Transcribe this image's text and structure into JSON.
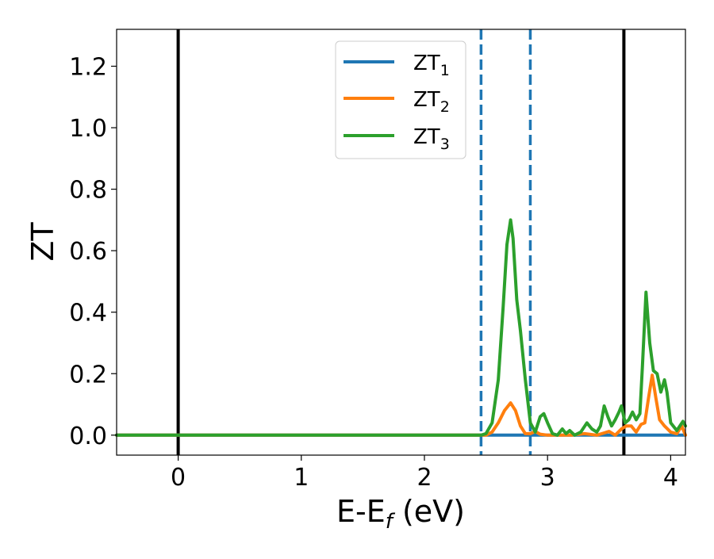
{
  "chart_data": {
    "type": "line",
    "title": "",
    "xlabel_main": "E-E",
    "xlabel_sub": "f",
    "xlabel_tail": " (eV)",
    "ylabel": "ZT",
    "xlim": [
      -0.5,
      4.12
    ],
    "ylim": [
      -0.065,
      1.32
    ],
    "xticks": [
      {
        "value": 0,
        "label": "0"
      },
      {
        "value": 1,
        "label": "1"
      },
      {
        "value": 2,
        "label": "2"
      },
      {
        "value": 3,
        "label": "3"
      },
      {
        "value": 4,
        "label": "4"
      }
    ],
    "yticks": [
      {
        "value": 0.0,
        "label": "0.0"
      },
      {
        "value": 0.2,
        "label": "0.2"
      },
      {
        "value": 0.4,
        "label": "0.4"
      },
      {
        "value": 0.6,
        "label": "0.6"
      },
      {
        "value": 0.8,
        "label": "0.8"
      },
      {
        "value": 1.0,
        "label": "1.0"
      },
      {
        "value": 1.2,
        "label": "1.2"
      }
    ],
    "grid": false,
    "legend_position": "top-center",
    "vlines": [
      {
        "x": 0.0,
        "style": "solid",
        "color": "#000000"
      },
      {
        "x": 3.62,
        "style": "solid",
        "color": "#000000"
      },
      {
        "x": 2.46,
        "style": "dashed",
        "color": "#1f77b4"
      },
      {
        "x": 2.86,
        "style": "dashed",
        "color": "#1f77b4"
      }
    ],
    "series": [
      {
        "name_main": "ZT",
        "name_sub": "1",
        "color": "#1f77b4",
        "points": [
          [
            -0.5,
            0.0
          ],
          [
            4.12,
            0.0
          ]
        ]
      },
      {
        "name_main": "ZT",
        "name_sub": "2",
        "color": "#ff7f0e",
        "points": [
          [
            -0.5,
            0.0
          ],
          [
            2.46,
            0.0
          ],
          [
            2.5,
            0.0
          ],
          [
            2.55,
            0.01
          ],
          [
            2.6,
            0.04
          ],
          [
            2.65,
            0.08
          ],
          [
            2.7,
            0.105
          ],
          [
            2.74,
            0.08
          ],
          [
            2.78,
            0.03
          ],
          [
            2.82,
            0.005
          ],
          [
            2.86,
            0.005
          ],
          [
            2.9,
            0.012
          ],
          [
            2.94,
            0.003
          ],
          [
            3.0,
            0.0
          ],
          [
            3.2,
            0.0
          ],
          [
            3.3,
            0.005
          ],
          [
            3.4,
            0.0
          ],
          [
            3.5,
            0.012
          ],
          [
            3.55,
            0.0
          ],
          [
            3.6,
            0.02
          ],
          [
            3.64,
            0.03
          ],
          [
            3.68,
            0.03
          ],
          [
            3.72,
            0.01
          ],
          [
            3.76,
            0.035
          ],
          [
            3.79,
            0.04
          ],
          [
            3.82,
            0.12
          ],
          [
            3.85,
            0.195
          ],
          [
            3.88,
            0.12
          ],
          [
            3.91,
            0.05
          ],
          [
            3.95,
            0.03
          ],
          [
            4.0,
            0.01
          ],
          [
            4.05,
            0.005
          ],
          [
            4.09,
            0.03
          ],
          [
            4.12,
            0.0
          ]
        ]
      },
      {
        "name_main": "ZT",
        "name_sub": "3",
        "color": "#2ca02c",
        "points": [
          [
            -0.5,
            0.0
          ],
          [
            2.46,
            0.0
          ],
          [
            2.5,
            0.005
          ],
          [
            2.55,
            0.04
          ],
          [
            2.6,
            0.18
          ],
          [
            2.64,
            0.42
          ],
          [
            2.67,
            0.62
          ],
          [
            2.7,
            0.7
          ],
          [
            2.72,
            0.64
          ],
          [
            2.75,
            0.44
          ],
          [
            2.78,
            0.34
          ],
          [
            2.82,
            0.18
          ],
          [
            2.86,
            0.04
          ],
          [
            2.9,
            0.01
          ],
          [
            2.94,
            0.06
          ],
          [
            2.97,
            0.07
          ],
          [
            3.0,
            0.04
          ],
          [
            3.04,
            0.005
          ],
          [
            3.08,
            0.0
          ],
          [
            3.12,
            0.02
          ],
          [
            3.15,
            0.005
          ],
          [
            3.18,
            0.015
          ],
          [
            3.22,
            0.0
          ],
          [
            3.27,
            0.01
          ],
          [
            3.32,
            0.04
          ],
          [
            3.36,
            0.02
          ],
          [
            3.4,
            0.01
          ],
          [
            3.43,
            0.03
          ],
          [
            3.46,
            0.095
          ],
          [
            3.49,
            0.06
          ],
          [
            3.52,
            0.03
          ],
          [
            3.55,
            0.05
          ],
          [
            3.58,
            0.075
          ],
          [
            3.6,
            0.095
          ],
          [
            3.63,
            0.04
          ],
          [
            3.66,
            0.05
          ],
          [
            3.69,
            0.075
          ],
          [
            3.72,
            0.05
          ],
          [
            3.75,
            0.07
          ],
          [
            3.77,
            0.22
          ],
          [
            3.8,
            0.465
          ],
          [
            3.83,
            0.3
          ],
          [
            3.86,
            0.21
          ],
          [
            3.89,
            0.2
          ],
          [
            3.92,
            0.14
          ],
          [
            3.95,
            0.18
          ],
          [
            3.97,
            0.14
          ],
          [
            4.0,
            0.04
          ],
          [
            4.05,
            0.015
          ],
          [
            4.1,
            0.045
          ],
          [
            4.12,
            0.03
          ]
        ]
      }
    ]
  }
}
